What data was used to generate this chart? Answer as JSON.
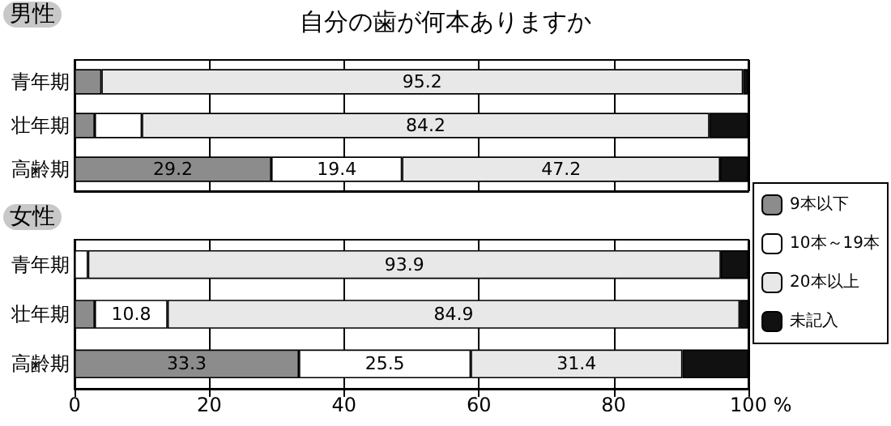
{
  "chart_data": [
    {
      "type": "bar",
      "orientation": "horizontal",
      "stacked": true,
      "title": "自分の歯が何本ありますか",
      "subtitle": "男性",
      "categories": [
        "青年期",
        "壮年期",
        "高齢期"
      ],
      "series": [
        {
          "name": "9本以下",
          "color": "#8c8c8c",
          "values": [
            4.0,
            3.0,
            29.2
          ],
          "value_labels": [
            null,
            null,
            "29.2"
          ]
        },
        {
          "name": "10本～19本",
          "color": "#ffffff",
          "values": [
            null,
            7.0,
            19.4
          ],
          "value_labels": [
            null,
            null,
            "19.4"
          ]
        },
        {
          "name": "20本以上",
          "color": "#e8e8e8",
          "values": [
            95.2,
            84.2,
            47.2
          ],
          "value_labels": [
            "95.2",
            "84.2",
            "47.2"
          ]
        },
        {
          "name": "未記入",
          "color": "#111111",
          "values": [
            0.8,
            5.8,
            4.2
          ],
          "value_labels": [
            null,
            null,
            null
          ]
        }
      ],
      "xlim": [
        0,
        100
      ],
      "xticks": [
        0,
        20,
        40,
        60,
        80,
        100
      ],
      "grid": "x",
      "tick_labels": "y",
      "legend": "right"
    },
    {
      "type": "bar",
      "orientation": "horizontal",
      "stacked": true,
      "subtitle": "女性",
      "xlabel": "%",
      "categories": [
        "青年期",
        "壮年期",
        "高齢期"
      ],
      "series": [
        {
          "name": "9本以下",
          "color": "#8c8c8c",
          "values": [
            null,
            3.0,
            33.3
          ],
          "value_labels": [
            null,
            null,
            "33.3"
          ]
        },
        {
          "name": "10本～19本",
          "color": "#ffffff",
          "values": [
            2.0,
            10.8,
            25.5
          ],
          "value_labels": [
            null,
            "10.8",
            "25.5"
          ]
        },
        {
          "name": "20本以上",
          "color": "#e8e8e8",
          "values": [
            93.9,
            84.9,
            31.4
          ],
          "value_labels": [
            "93.9",
            "84.9",
            "31.4"
          ]
        },
        {
          "name": "未記入",
          "color": "#111111",
          "values": [
            4.1,
            1.3,
            9.8
          ],
          "value_labels": [
            null,
            null,
            null
          ]
        }
      ],
      "xlim": [
        0,
        100
      ],
      "xticks": [
        0,
        20,
        40,
        60,
        80,
        100
      ],
      "grid": "x",
      "legend": "right"
    }
  ]
}
